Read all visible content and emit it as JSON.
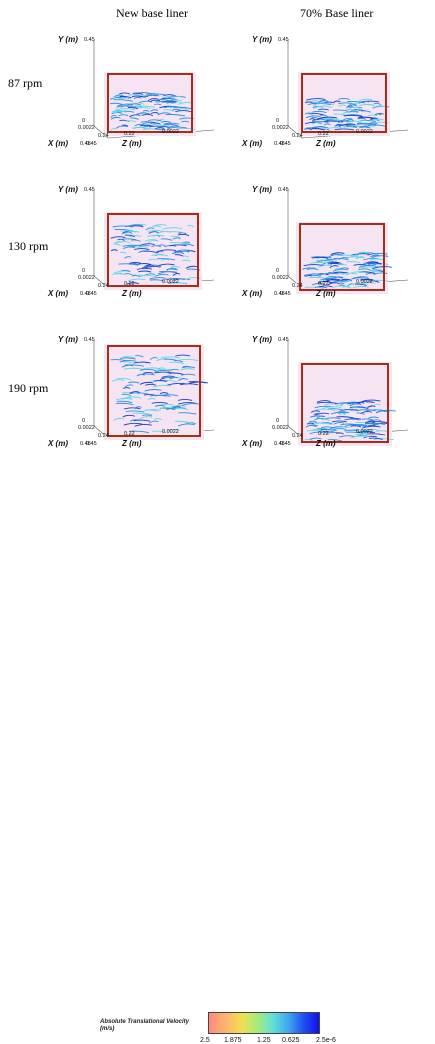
{
  "columns": [
    "New base liner",
    "70% Base liner"
  ],
  "rows": [
    "87 rpm",
    "130 rpm",
    "190 rpm"
  ],
  "axes": {
    "y_label": "Y (m)",
    "x_label": "X (m)",
    "z_label": "Z (m)",
    "y_top": "0.45",
    "origin": "0",
    "x_near": "0.0022",
    "x_far": "0.24",
    "x_mid": "0.48",
    "x_mid2": "0.45",
    "z_mid": "0.22",
    "z_end": "0.0022"
  },
  "panels": [
    {
      "row": 0,
      "col": 0,
      "fill_level": 0.7
    },
    {
      "row": 0,
      "col": 1,
      "fill_level": 0.6
    },
    {
      "row": 1,
      "col": 0,
      "fill_level": 0.88
    },
    {
      "row": 1,
      "col": 1,
      "fill_level": 0.58
    },
    {
      "row": 2,
      "col": 0,
      "fill_level": 0.92
    },
    {
      "row": 2,
      "col": 1,
      "fill_level": 0.55
    }
  ],
  "legend": {
    "title_line1": "Absolute Translational Velocity",
    "title_line2": "(m/s)",
    "ticks": [
      "2.5",
      "1.875",
      "1.25",
      "0.625",
      "2.5e-6"
    ]
  },
  "colors": {
    "frame": "#a0301c",
    "particles_main": "#2a8ee0",
    "particles_light": "#5fd8e8",
    "particles_dark": "#1a40c8",
    "background_pink": "#f6e4f2"
  }
}
